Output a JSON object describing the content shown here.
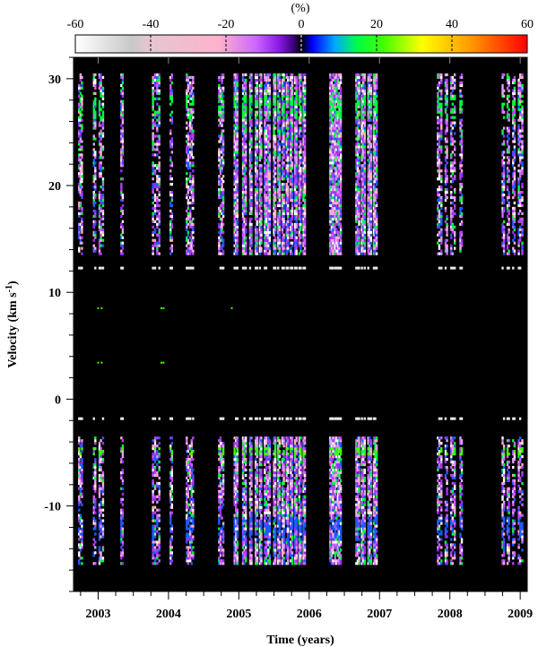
{
  "chart_data": {
    "type": "heatmap",
    "title": "",
    "xlabel": "Time (years)",
    "ylabel_main": "Velocity (km s",
    "ylabel_sup": "-1",
    "ylabel_end": ")",
    "xlim": [
      2002.65,
      2009.1
    ],
    "ylim": [
      -18,
      32
    ],
    "x_ticks": [
      2003,
      2004,
      2005,
      2006,
      2007,
      2008,
      2009
    ],
    "x_tick_labels": [
      "2003",
      "2004",
      "2005",
      "2006",
      "2007",
      "2008",
      "2009"
    ],
    "y_ticks": [
      -10,
      0,
      10,
      20,
      30
    ],
    "y_tick_labels": [
      "-10",
      "0",
      "10",
      "20",
      "30"
    ],
    "background_color": "#000000",
    "colorbar": {
      "label": "(%)",
      "range": [
        -60,
        60
      ],
      "ticks": [
        -60,
        -40,
        -20,
        0,
        20,
        40,
        60
      ],
      "tick_labels": [
        "-60",
        "-40",
        "-20",
        "0",
        "20",
        "40",
        "60"
      ],
      "stops": [
        {
          "value": -60,
          "color": "#ffffff"
        },
        {
          "value": -45,
          "color": "#c8c8c8"
        },
        {
          "value": -40,
          "color": "#e6c6d2"
        },
        {
          "value": -22,
          "color": "#ffb2cc"
        },
        {
          "value": -12,
          "color": "#cc66ff"
        },
        {
          "value": -6,
          "color": "#8a1ae6"
        },
        {
          "value": -2,
          "color": "#3a007a"
        },
        {
          "value": 0,
          "color": "#000000"
        },
        {
          "value": 3,
          "color": "#0000ff"
        },
        {
          "value": 9,
          "color": "#00aaff"
        },
        {
          "value": 15,
          "color": "#00ff44"
        },
        {
          "value": 22,
          "color": "#44ff00"
        },
        {
          "value": 32,
          "color": "#ffff00"
        },
        {
          "value": 45,
          "color": "#ff9900"
        },
        {
          "value": 60,
          "color": "#ff0000"
        }
      ]
    },
    "observation_times": [
      2002.73,
      2002.75,
      2002.77,
      2002.94,
      2002.96,
      2003.02,
      2003.04,
      2003.07,
      2003.33,
      2003.35,
      2003.78,
      2003.81,
      2003.84,
      2003.87,
      2004.03,
      2004.05,
      2004.26,
      2004.28,
      2004.31,
      2004.33,
      2004.35,
      2004.72,
      2004.74,
      2004.76,
      2004.78,
      2004.94,
      2004.96,
      2004.98,
      2005.06,
      2005.08,
      2005.1,
      2005.16,
      2005.18,
      2005.24,
      2005.26,
      2005.3,
      2005.32,
      2005.37,
      2005.39,
      2005.42,
      2005.44,
      2005.5,
      2005.52,
      2005.56,
      2005.58,
      2005.62,
      2005.64,
      2005.68,
      2005.7,
      2005.74,
      2005.76,
      2005.8,
      2005.82,
      2005.86,
      2005.88,
      2005.92,
      2005.94,
      2006.3,
      2006.32,
      2006.34,
      2006.37,
      2006.39,
      2006.41,
      2006.43,
      2006.45,
      2006.67,
      2006.69,
      2006.71,
      2006.75,
      2006.77,
      2006.79,
      2006.84,
      2006.86,
      2006.88,
      2006.92,
      2006.94,
      2006.96,
      2007.83,
      2007.85,
      2007.88,
      2007.94,
      2007.96,
      2008.02,
      2008.04,
      2008.07,
      2008.15,
      2008.17,
      2008.75,
      2008.77,
      2008.82,
      2008.84,
      2008.9,
      2008.92,
      2008.98,
      2009.0,
      2009.03
    ]
  }
}
